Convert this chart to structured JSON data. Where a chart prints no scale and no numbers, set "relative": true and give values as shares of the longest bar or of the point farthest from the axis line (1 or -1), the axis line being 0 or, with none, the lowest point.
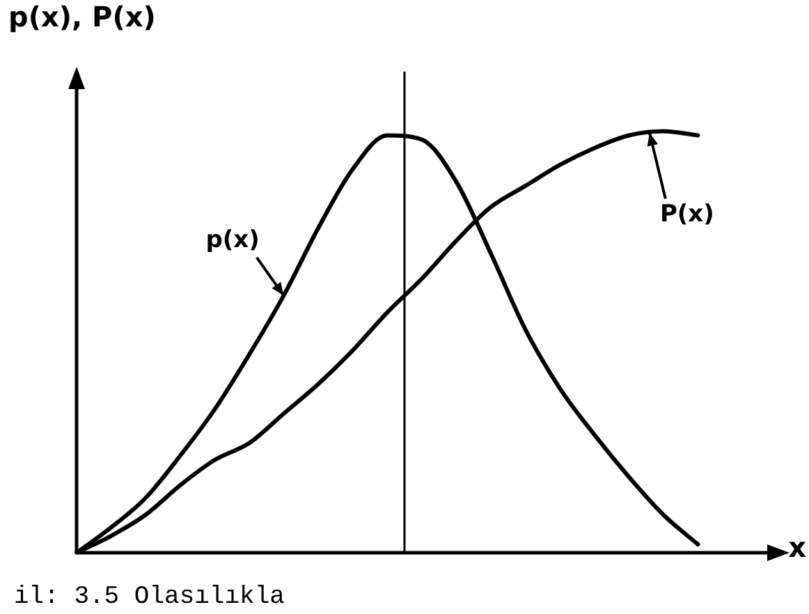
{
  "chart_data": {
    "type": "line",
    "relative": true,
    "xlabel": "x",
    "ylabel": "p(x), P(x)",
    "legend": false,
    "grid": false,
    "tick_labels": false,
    "marker": "none",
    "line_style": "solid",
    "categories": [
      null,
      null,
      null,
      null,
      null,
      null,
      null,
      null,
      null,
      null,
      null,
      null,
      null,
      null,
      null,
      null,
      null,
      null,
      null,
      null
    ],
    "series": [
      {
        "name": "p(x)",
        "color": "#000000",
        "values": [
          0,
          0.06,
          0.13,
          0.23,
          0.34,
          0.47,
          0.61,
          0.77,
          0.91,
          0.99,
          0.98,
          0.88,
          0.71,
          0.53,
          0.39,
          0.28,
          0.18,
          0.09,
          0.02,
          null
        ]
      },
      {
        "name": "P(x)",
        "color": "#000000",
        "values": [
          0,
          0.04,
          0.09,
          0.16,
          0.22,
          0.26,
          0.33,
          0.4,
          0.48,
          0.57,
          0.65,
          0.74,
          0.82,
          0.87,
          0.92,
          0.96,
          0.99,
          1,
          0.99,
          null
        ]
      }
    ],
    "annotations": [
      "il: 3.5 Olasılıkla"
    ]
  }
}
